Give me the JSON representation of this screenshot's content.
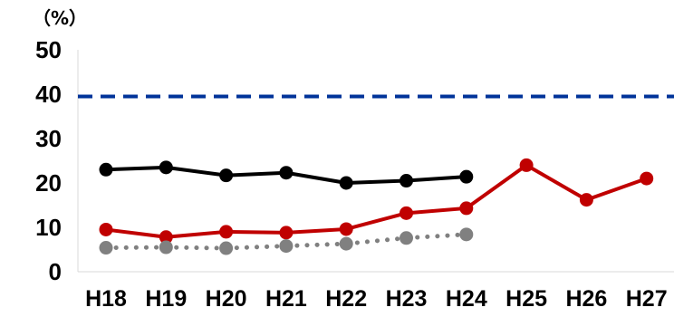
{
  "chart_data": {
    "type": "line",
    "ylabel": "（%）",
    "ylim": [
      0,
      50
    ],
    "yticks": [
      "50",
      "40",
      "30",
      "20",
      "10",
      "0"
    ],
    "categories": [
      "H18",
      "H19",
      "H20",
      "H21",
      "H22",
      "H23",
      "H24",
      "H25",
      "H26",
      "H27"
    ],
    "grid": false,
    "series": [
      {
        "color": "#000000",
        "style": "solid",
        "values": [
          23,
          23.5,
          21.7,
          22.3,
          20,
          20.5,
          21.4,
          null,
          null,
          null
        ]
      },
      {
        "color": "#C00000",
        "style": "solid",
        "values": [
          9.5,
          7.8,
          9,
          8.8,
          9.6,
          13.2,
          14.3,
          24,
          16.2,
          21
        ]
      },
      {
        "color": "#808080",
        "style": "dotted",
        "values": [
          5.4,
          5.5,
          5.3,
          5.8,
          6.3,
          7.6,
          8.4,
          null,
          null,
          null
        ]
      }
    ],
    "reference_lines": [
      {
        "value": 39.5,
        "color": "#003399",
        "style": "dashed"
      }
    ]
  }
}
